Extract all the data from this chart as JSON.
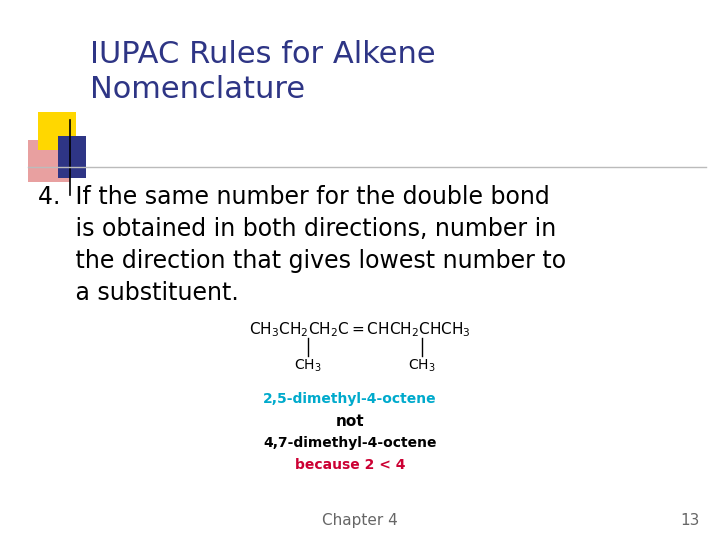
{
  "title_line1": "IUPAC Rules for Alkene",
  "title_line2": "Nomenclature",
  "title_color": "#2E3585",
  "title_fontsize": 22,
  "body_line1": "4.  If the same number for the double bond",
  "body_line2": "     is obtained in both directions, number in",
  "body_line3": "     the direction that gives lowest number to",
  "body_line4": "     a substituent.",
  "body_fontsize": 17,
  "body_color": "#000000",
  "chapter_text": "Chapter 4",
  "page_num": "13",
  "footer_fontsize": 11,
  "footer_color": "#666666",
  "correct_name": "2,5-dimethyl-4-octene",
  "correct_color": "#00AACC",
  "not_text": "not",
  "wrong_name": "4,7-dimethyl-4-octene",
  "wrong_color": "#000000",
  "because_text": "because 2 < 4",
  "because_color": "#CC0033",
  "formula_color": "#000000",
  "bg_color": "#FFFFFF",
  "deco_yellow": "#FFD700",
  "deco_pink": "#E8A0A0",
  "deco_blue": "#2E3585",
  "separator_color": "#BBBBBB",
  "formula_fontsize": 11,
  "label_fontsize": 10
}
